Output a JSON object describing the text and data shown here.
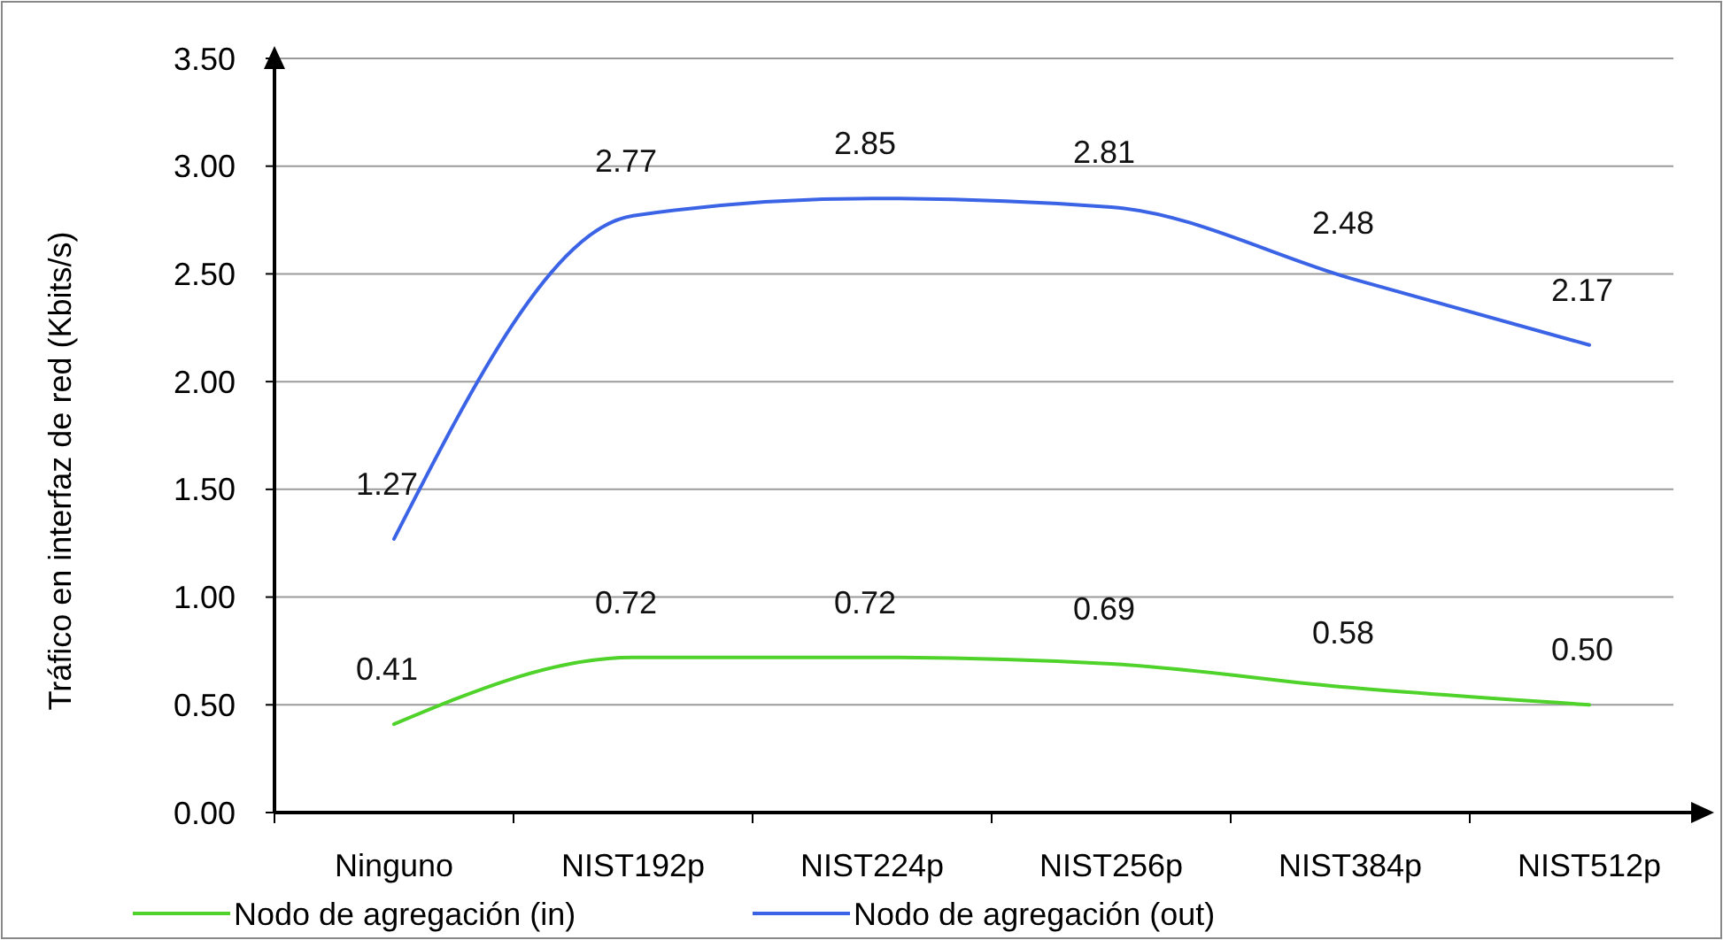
{
  "chart_data": {
    "type": "line",
    "ylabel": "Tráfico en interfaz de red  (Kbits/s)",
    "categories": [
      "Ninguno",
      "NIST192p",
      "NIST224p",
      "NIST256p",
      "NIST384p",
      "NIST512p"
    ],
    "series": [
      {
        "name": "Nodo de agregación (in)",
        "color": "#4fd22a",
        "values": [
          0.41,
          0.72,
          0.72,
          0.69,
          0.58,
          0.5
        ],
        "value_labels": [
          "0.41",
          "0.72",
          "0.72",
          "0.69",
          "0.58",
          "0.50"
        ]
      },
      {
        "name": "Nodo de agregación (out)",
        "color": "#3b63e6",
        "values": [
          1.27,
          2.77,
          2.85,
          2.81,
          2.48,
          2.17
        ],
        "value_labels": [
          "1.27",
          "2.77",
          "2.85",
          "2.81",
          "2.48",
          "2.17"
        ]
      }
    ],
    "ylim": [
      0,
      3.5
    ],
    "yticks": [
      {
        "value": 0,
        "label": "0.00"
      },
      {
        "value": 0.5,
        "label": "0.50"
      },
      {
        "value": 1,
        "label": "1.00"
      },
      {
        "value": 1.5,
        "label": "1.50"
      },
      {
        "value": 2,
        "label": "2.00"
      },
      {
        "value": 2.5,
        "label": "2.50"
      },
      {
        "value": 3,
        "label": "3.00"
      },
      {
        "value": 3.5,
        "label": "3.50"
      }
    ],
    "grid": "y",
    "legend": "bottom",
    "marker": "none",
    "line_style": "solid"
  }
}
